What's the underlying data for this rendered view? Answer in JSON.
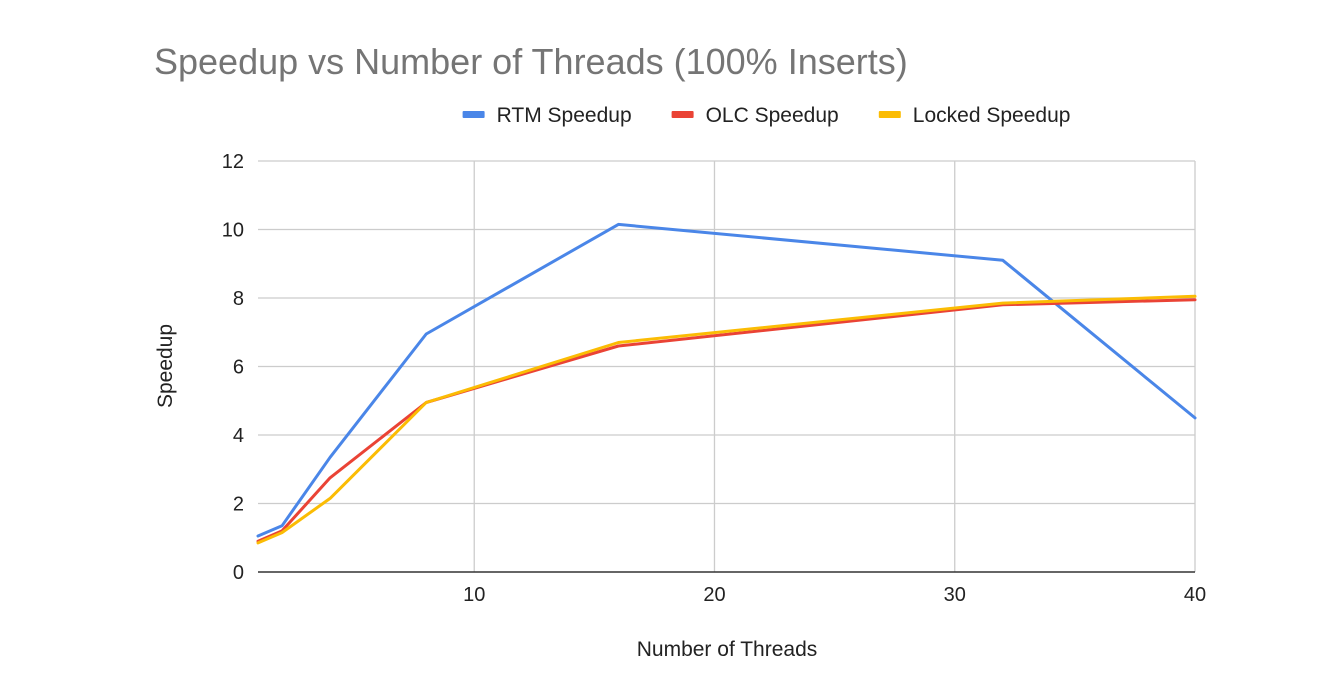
{
  "chart_data": {
    "type": "line",
    "title": "Speedup vs Number of Threads (100% Inserts)",
    "xlabel": "Number of Threads",
    "ylabel": "Speedup",
    "xlim": [
      1,
      40
    ],
    "ylim": [
      0,
      12
    ],
    "xticks": [
      10,
      20,
      30,
      40
    ],
    "yticks": [
      0,
      2,
      4,
      6,
      8,
      10,
      12
    ],
    "grid": true,
    "legend_position": "top",
    "x": [
      1,
      2,
      4,
      8,
      16,
      32,
      40
    ],
    "series": [
      {
        "name": "RTM Speedup",
        "color": "#4a86e8",
        "values": [
          1.05,
          1.35,
          3.35,
          6.95,
          10.15,
          9.1,
          4.5
        ]
      },
      {
        "name": "OLC Speedup",
        "color": "#ea4335",
        "values": [
          0.9,
          1.2,
          2.75,
          4.95,
          6.6,
          7.8,
          7.95
        ]
      },
      {
        "name": "Locked Speedup",
        "color": "#fbbc04",
        "values": [
          0.85,
          1.15,
          2.15,
          4.95,
          6.7,
          7.85,
          8.05
        ]
      }
    ]
  }
}
